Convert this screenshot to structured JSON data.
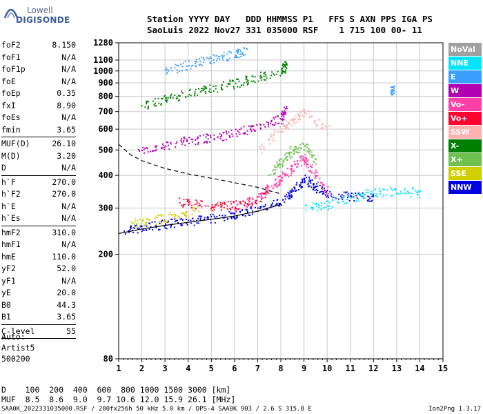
{
  "logo": {
    "line1": "Lowell",
    "line2": "DIGISONDE"
  },
  "header": {
    "line1": "Station YYYY DAY   DDD HHMMSS P1   FFS S AXN PPS IGA PS",
    "line2": "SaoLuis 2022 Nov27 331 035000 RSF    1 715 100 00- 11"
  },
  "params": {
    "group1": [
      {
        "name": "foF2",
        "value": "8.150"
      },
      {
        "name": "foF1",
        "value": "N/A"
      },
      {
        "name": "foF1p",
        "value": "N/A"
      },
      {
        "name": "foE",
        "value": "N/A"
      },
      {
        "name": "foEp",
        "value": "0.35"
      },
      {
        "name": "fxI",
        "value": "8.90"
      },
      {
        "name": "foEs",
        "value": "N/A"
      },
      {
        "name": "fmin",
        "value": "3.65"
      }
    ],
    "group2": [
      {
        "name": "MUF(D)",
        "value": "26.10"
      },
      {
        "name": "M(D)",
        "value": "3.20"
      },
      {
        "name": "D",
        "value": "N/A"
      }
    ],
    "group3": [
      {
        "name": "h`F",
        "value": "270.0"
      },
      {
        "name": "h`F2",
        "value": "270.0"
      },
      {
        "name": "h`E",
        "value": "N/A"
      },
      {
        "name": "h`Es",
        "value": "N/A"
      }
    ],
    "group4": [
      {
        "name": "hmF2",
        "value": "310.0"
      },
      {
        "name": "hmF1",
        "value": "N/A"
      },
      {
        "name": "hmE",
        "value": "110.0"
      },
      {
        "name": "yF2",
        "value": "52.0"
      },
      {
        "name": "yF1",
        "value": "N/A"
      },
      {
        "name": "yE",
        "value": "20.0"
      },
      {
        "name": "B0",
        "value": "44.3"
      },
      {
        "name": "B1",
        "value": "3.65"
      }
    ],
    "group5": [
      {
        "name": "C-level",
        "value": "55"
      }
    ]
  },
  "auto": {
    "line1": "Auto:",
    "line2": "Artist5",
    "line3": "500200"
  },
  "muf_table": {
    "line1": "D    100  200  400  600  800 1000 1500 3000 [km]",
    "line2": "MUF  8.5  8.6  9.0  9.7 10.6 12.0 15.9 26.1 [MHz]"
  },
  "footer": {
    "left": "SAA0K_2022331035000.RSF / 280fx256h 50 kHz 5.0 km / DPS-4 SAA0K 903 / 2.6 S 315.8 E",
    "right": "Ion2Png 1.3.17"
  },
  "legend": [
    {
      "label": "NoVal",
      "color": "#a0a0a0"
    },
    {
      "label": "NNE",
      "color": "#00e5ff"
    },
    {
      "label": "E",
      "color": "#3aa0ff"
    },
    {
      "label": "W",
      "color": "#b000b0"
    },
    {
      "label": "Vo-",
      "color": "#ff40a8"
    },
    {
      "label": "Vo+",
      "color": "#ff0030"
    },
    {
      "label": "SSW",
      "color": "#ffb0b0"
    },
    {
      "label": "X-",
      "color": "#008000"
    },
    {
      "label": "X+",
      "color": "#70c050"
    },
    {
      "label": "SSE",
      "color": "#d0d000"
    },
    {
      "label": "NNW",
      "color": "#0000e0"
    }
  ],
  "chart_data": {
    "type": "scatter",
    "xlim": [
      1,
      15
    ],
    "ylim": [
      80,
      1280
    ],
    "x_ticks": [
      "1",
      "2",
      "3",
      "4",
      "5",
      "6",
      "7",
      "8",
      "9",
      "10",
      "11",
      "12",
      "13",
      "14",
      "15"
    ],
    "y_ticks": [
      "80",
      "200",
      "300",
      "400",
      "500",
      "600",
      "700",
      "800",
      "900",
      "1000",
      "1100",
      "1280"
    ],
    "y_scale": "log",
    "grid": true,
    "legend_position": "right",
    "series": [
      {
        "points": [
          [
            1.0,
            240
          ],
          [
            2,
            250
          ],
          [
            3,
            258
          ],
          [
            4,
            265
          ],
          [
            5,
            272
          ],
          [
            6,
            280
          ],
          [
            7,
            292
          ],
          [
            8,
            310
          ]
        ]
      },
      {
        "points": [
          [
            1.0,
            525
          ],
          [
            1.5,
            480
          ],
          [
            2,
            455
          ],
          [
            3,
            425
          ],
          [
            4,
            405
          ],
          [
            5,
            390
          ],
          [
            6,
            375
          ],
          [
            7,
            360
          ],
          [
            8,
            340
          ]
        ]
      }
    ],
    "traces": [
      {
        "color": "#0000e0",
        "points": [
          [
            1.2,
            245
          ],
          [
            2,
            255
          ],
          [
            3,
            262
          ],
          [
            4,
            268
          ],
          [
            5,
            275
          ],
          [
            6,
            285
          ],
          [
            7,
            300
          ],
          [
            8,
            320
          ],
          [
            8.5,
            350
          ],
          [
            9,
            390
          ],
          [
            9.5,
            360
          ],
          [
            10,
            345
          ],
          [
            11,
            335
          ],
          [
            12,
            330
          ]
        ]
      },
      {
        "color": "#ff40a8",
        "points": [
          [
            6,
            300
          ],
          [
            7,
            330
          ],
          [
            7.5,
            360
          ],
          [
            8,
            390
          ],
          [
            8.5,
            430
          ],
          [
            9,
            470
          ],
          [
            9.3,
            420
          ],
          [
            10,
            350
          ]
        ]
      },
      {
        "color": "#b000b0",
        "points": [
          [
            1.8,
            490
          ],
          [
            3,
            520
          ],
          [
            4,
            545
          ],
          [
            5,
            560
          ],
          [
            6,
            580
          ],
          [
            7,
            620
          ],
          [
            8,
            660
          ],
          [
            8.2,
            720
          ]
        ]
      },
      {
        "color": "#008000",
        "points": [
          [
            2,
            740
          ],
          [
            3,
            780
          ],
          [
            4,
            820
          ],
          [
            5,
            860
          ],
          [
            6,
            900
          ],
          [
            7,
            950
          ],
          [
            8,
            1000
          ],
          [
            8.2,
            1060
          ]
        ]
      },
      {
        "color": "#3aa0ff",
        "points": [
          [
            3,
            1000
          ],
          [
            4,
            1060
          ],
          [
            5,
            1110
          ],
          [
            6,
            1160
          ],
          [
            6.5,
            1200
          ]
        ]
      },
      {
        "color": "#00e5ff",
        "points": [
          [
            9,
            300
          ],
          [
            10,
            310
          ],
          [
            11,
            330
          ],
          [
            12,
            345
          ],
          [
            13,
            350
          ],
          [
            14,
            345
          ]
        ]
      },
      {
        "color": "#ff0030",
        "points": [
          [
            3.5,
            320
          ],
          [
            4.5,
            310
          ],
          [
            5.5,
            305
          ],
          [
            6.5,
            315
          ],
          [
            7.5,
            340
          ]
        ]
      },
      {
        "color": "#d0d000",
        "points": [
          [
            1.5,
            265
          ],
          [
            2.5,
            270
          ],
          [
            3.5,
            285
          ],
          [
            4.5,
            295
          ]
        ]
      },
      {
        "color": "#70c050",
        "points": [
          [
            7.5,
            400
          ],
          [
            8,
            450
          ],
          [
            8.5,
            500
          ],
          [
            9,
            520
          ],
          [
            9.5,
            450
          ]
        ]
      },
      {
        "color": "#ffb0b0",
        "points": [
          [
            7,
            500
          ],
          [
            8,
            600
          ],
          [
            8.5,
            650
          ],
          [
            9,
            700
          ],
          [
            10,
            600
          ]
        ]
      },
      {
        "color": "#3aa0ff",
        "points": [
          [
            12.8,
            835
          ],
          [
            12.8,
            850
          ]
        ]
      }
    ]
  }
}
